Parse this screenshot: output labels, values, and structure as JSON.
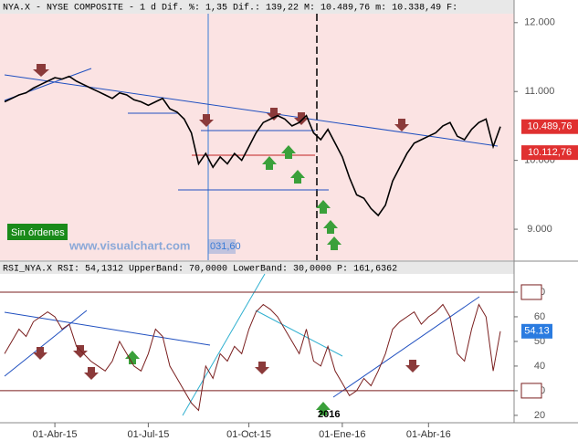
{
  "chart_data": [
    {
      "type": "line",
      "title": "NYA.X - NYSE COMPOSITE -  1 d Dif. %: 1,35 Dif.: 139,22 M: 10.489,76 m: 10.338,49 F:",
      "series": [
        {
          "name": "NYA.X",
          "color": "#000000",
          "values": [
            10850,
            10900,
            10950,
            10980,
            11050,
            11100,
            11150,
            11200,
            11180,
            11220,
            11150,
            11100,
            11050,
            11000,
            10950,
            10900,
            10980,
            10950,
            10880,
            10850,
            10800,
            10850,
            10900,
            10750,
            10700,
            10600,
            10400,
            9950,
            10100,
            9900,
            10050,
            9950,
            10100,
            10000,
            10200,
            10400,
            10550,
            10600,
            10650,
            10600,
            10500,
            10550,
            10650,
            10400,
            10300,
            10450,
            10250,
            10050,
            9750,
            9500,
            9450,
            9300,
            9200,
            9350,
            9700,
            9900,
            10100,
            10250,
            10300,
            10350,
            10400,
            10500,
            10550,
            10350,
            10300,
            10450,
            10550,
            10600,
            10200,
            10490
          ]
        }
      ],
      "ylim": [
        8550,
        12130
      ],
      "yticks": [
        {
          "value": 9000,
          "label": "9.000"
        },
        {
          "value": 10000,
          "label": "10.000"
        },
        {
          "value": 11000,
          "label": "11.000"
        },
        {
          "value": 12000,
          "label": "12.000"
        }
      ],
      "price_labels": [
        {
          "value": 10489.76,
          "label": "10.489,76"
        },
        {
          "value": 10112.76,
          "label": "10.112,76"
        }
      ],
      "annotations": [
        "Sin órdenes",
        "www.visualchart.com",
        "031,60"
      ],
      "background": "#fbe3e3"
    },
    {
      "type": "line",
      "title": "RSI_NYA.X RSI: 54,1312 UpperBand: 70,0000 LowerBand: 30,0000 P: 161,6362",
      "categories": [
        null,
        null,
        null,
        null,
        null,
        null,
        null,
        "01-Abr-15",
        null,
        null,
        null,
        null,
        null,
        null,
        null,
        null,
        null,
        null,
        null,
        null,
        "01-Jul-15",
        null,
        null,
        null,
        null,
        null,
        null,
        null,
        null,
        null,
        null,
        null,
        null,
        null,
        "01-Oct-15",
        null,
        null,
        null,
        null,
        null,
        null,
        null,
        null,
        null,
        null,
        null,
        null,
        "01-Ene-16",
        null,
        null,
        null,
        null,
        null,
        null,
        null,
        null,
        null,
        null,
        null,
        "01-Abr-16",
        null,
        null,
        null,
        null,
        null,
        null,
        null,
        null,
        null,
        null
      ],
      "series": [
        {
          "name": "RSI",
          "color": "#7a1f1f",
          "values": [
            45,
            50,
            55,
            52,
            58,
            60,
            62,
            60,
            55,
            57,
            48,
            45,
            42,
            40,
            38,
            42,
            50,
            45,
            40,
            38,
            45,
            55,
            52,
            40,
            35,
            30,
            25,
            22,
            40,
            35,
            45,
            42,
            48,
            45,
            55,
            62,
            65,
            63,
            60,
            55,
            50,
            45,
            55,
            42,
            40,
            48,
            38,
            33,
            28,
            30,
            35,
            32,
            38,
            45,
            55,
            58,
            60,
            62,
            57,
            60,
            62,
            65,
            60,
            45,
            42,
            55,
            65,
            60,
            38,
            54.13
          ]
        }
      ],
      "ylim": [
        17,
        77.4
      ],
      "yticks": [
        20,
        30,
        40,
        50,
        60,
        70
      ],
      "bands": [
        30,
        70
      ],
      "last_label": {
        "value": 54.13,
        "label": "54.13"
      },
      "annotations": [
        "2016"
      ],
      "background": "#ffffff"
    }
  ]
}
